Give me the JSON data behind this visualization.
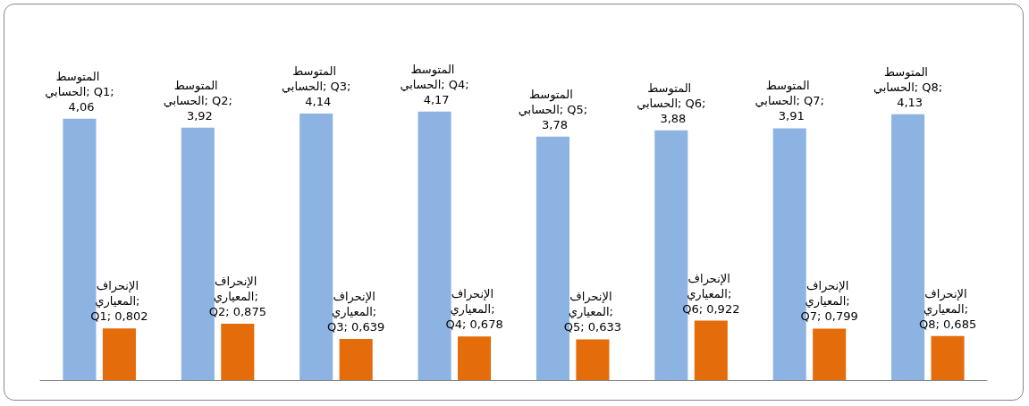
{
  "chart_data": {
    "type": "bar",
    "categories": [
      null,
      null,
      null,
      null,
      null,
      null,
      null,
      null
    ],
    "series": [
      {
        "color": "#8db3e2",
        "values": [
          4.06,
          3.92,
          4.14,
          4.17,
          3.78,
          3.88,
          3.91,
          4.13
        ],
        "value_labels": [
          "المتوسط الحسابي; Q1; 4,06",
          "المتوسط الحسابي; Q2; 3,92",
          "المتوسط الحسابي; Q3; 4,14",
          "المتوسط الحسابي; Q4; 4,17",
          "المتوسط الحسابي; Q5; 3,78",
          "المتوسط الحسابي; Q6; 3,88",
          "المتوسط الحسابي; Q7; 3,91",
          "المتوسط الحسابي; Q8; 4,13"
        ]
      },
      {
        "color": "#e46c0a",
        "values": [
          0.802,
          0.875,
          0.639,
          0.678,
          0.633,
          0.922,
          0.799,
          0.685
        ],
        "value_labels": [
          "الإنحراف المعياري; Q1; 0,802",
          "الإنحراف المعياري; Q2; 0,875",
          "الإنحراف المعياري; Q3; 0,639",
          "الإنحراف المعياري; Q4; 0,678",
          "الإنحراف المعياري; Q5; 0,633",
          "الإنحراف المعياري; Q6; 0,922",
          "الإنحراف المعياري; Q7; 0,799",
          "الإنحراف المعياري; Q8; 0,685"
        ]
      }
    ],
    "tick_labels": false
  }
}
